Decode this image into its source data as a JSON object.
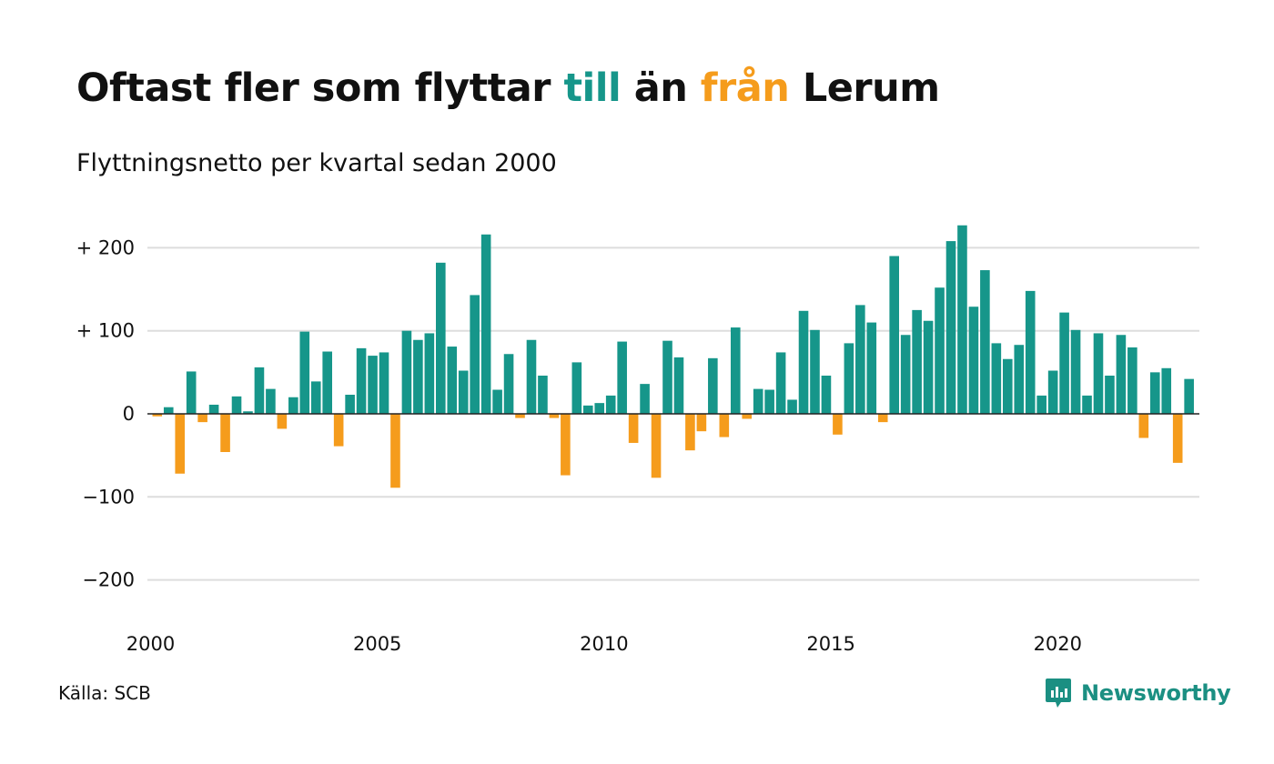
{
  "title": {
    "part1": "Oftast fler som flyttar ",
    "part2": "till",
    "part3": " än ",
    "part4": "från",
    "part5": " Lerum"
  },
  "subtitle": "Flyttningsnetto per kvartal sedan 2000",
  "source": "Källa: SCB",
  "brand": "Newsworthy",
  "colors": {
    "positive": "#16968a",
    "negative": "#f59c1c",
    "grid": "#dddddd",
    "axis": "#222222"
  },
  "chart_data": {
    "type": "bar",
    "xlabel": "",
    "ylabel": "",
    "ylim": [
      -240,
      235
    ],
    "yticks": [
      {
        "value": 200,
        "label": "+ 200"
      },
      {
        "value": 100,
        "label": "+ 100"
      },
      {
        "value": 0,
        "label": "0"
      },
      {
        "value": -100,
        "label": "−100"
      },
      {
        "value": -200,
        "label": "−200"
      }
    ],
    "xticks": [
      {
        "value": 2000,
        "label": "2000"
      },
      {
        "value": 2005,
        "label": "2005"
      },
      {
        "value": 2010,
        "label": "2010"
      },
      {
        "value": 2015,
        "label": "2015"
      },
      {
        "value": 2020,
        "label": "2020"
      }
    ],
    "start_year": 2000,
    "values": [
      -3,
      8,
      -72,
      51,
      -10,
      11,
      -46,
      21,
      3,
      56,
      30,
      -18,
      20,
      99,
      39,
      75,
      -39,
      23,
      79,
      70,
      74,
      -89,
      100,
      89,
      97,
      182,
      81,
      52,
      143,
      216,
      29,
      72,
      -5,
      89,
      46,
      -5,
      -74,
      62,
      10,
      13,
      22,
      87,
      -35,
      36,
      -77,
      88,
      68,
      -44,
      -21,
      67,
      -28,
      104,
      -6,
      30,
      29,
      74,
      17,
      124,
      101,
      46,
      -25,
      85,
      131,
      110,
      -10,
      190,
      95,
      125,
      112,
      152,
      208,
      227,
      129,
      173,
      85,
      66,
      83,
      148,
      22,
      52,
      122,
      101,
      22,
      97,
      46,
      95,
      80,
      -29,
      50,
      55,
      -59,
      42
    ]
  }
}
